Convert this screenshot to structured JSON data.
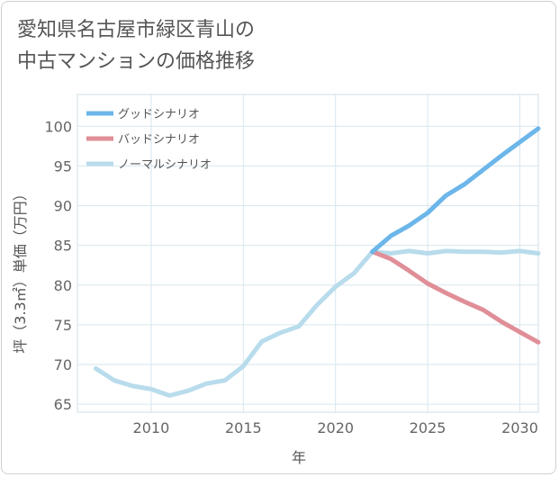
{
  "title_lines": [
    "愛知県名古屋市緑区青山の",
    "中古マンションの価格推移"
  ],
  "chart_data": {
    "type": "line",
    "title": "愛知県名古屋市緑区青山の中古マンションの価格推移",
    "xlabel": "年",
    "ylabel": "坪（3.3㎡）単価（万円）",
    "xlim": [
      2006,
      2031
    ],
    "ylim": [
      64,
      104
    ],
    "xticks": [
      2010,
      2015,
      2020,
      2025,
      2030
    ],
    "yticks": [
      65,
      70,
      75,
      80,
      85,
      90,
      95,
      100
    ],
    "grid": true,
    "legend_position": "top-left",
    "series": [
      {
        "name": "グッドシナリオ",
        "color": "#6cb6ea",
        "x": [
          2022,
          2023,
          2024,
          2025,
          2026,
          2027,
          2028,
          2029,
          2030,
          2031
        ],
        "y": [
          84.2,
          86.2,
          87.5,
          89.1,
          91.3,
          92.7,
          94.5,
          96.3,
          98.0,
          99.7
        ]
      },
      {
        "name": "バッドシナリオ",
        "color": "#e08e97",
        "x": [
          2022,
          2023,
          2024,
          2025,
          2026,
          2027,
          2028,
          2029,
          2030,
          2031
        ],
        "y": [
          84.2,
          83.3,
          81.8,
          80.2,
          79.0,
          77.9,
          76.9,
          75.4,
          74.1,
          72.8
        ]
      },
      {
        "name": "ノーマルシナリオ",
        "color": "#b8dcec",
        "x": [
          2007,
          2008,
          2009,
          2010,
          2011,
          2012,
          2013,
          2014,
          2015,
          2016,
          2017,
          2018,
          2019,
          2020,
          2021,
          2022,
          2023,
          2024,
          2025,
          2026,
          2027,
          2028,
          2029,
          2030,
          2031
        ],
        "y": [
          69.5,
          68.0,
          67.3,
          66.9,
          66.1,
          66.7,
          67.6,
          68.0,
          69.8,
          72.9,
          74.0,
          74.8,
          77.5,
          79.8,
          81.5,
          84.2,
          84.0,
          84.3,
          84.0,
          84.3,
          84.2,
          84.2,
          84.1,
          84.3,
          84.0
        ]
      }
    ]
  }
}
